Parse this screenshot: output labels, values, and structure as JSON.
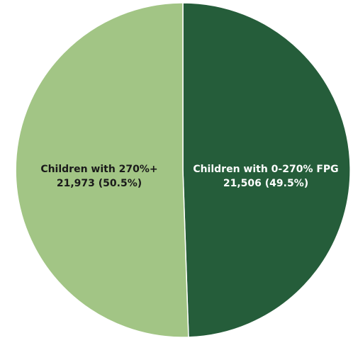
{
  "chart_data": {
    "type": "pie",
    "title": "",
    "slices": [
      {
        "name": "Children with 0-270% FPG",
        "value": 21506,
        "value_text": "21,506 (49.5%)",
        "percent": 49.5,
        "color": "#255d3a",
        "label_color": "#ffffff"
      },
      {
        "name": "Children with 270%+",
        "value": 21973,
        "value_text": "21,973 (50.5%)",
        "percent": 50.5,
        "color": "#a2c585",
        "label_color": "#1a1a1a"
      }
    ],
    "start": "12 o'clock",
    "direction": "clockwise",
    "slice_border_color": "#ffffff"
  }
}
